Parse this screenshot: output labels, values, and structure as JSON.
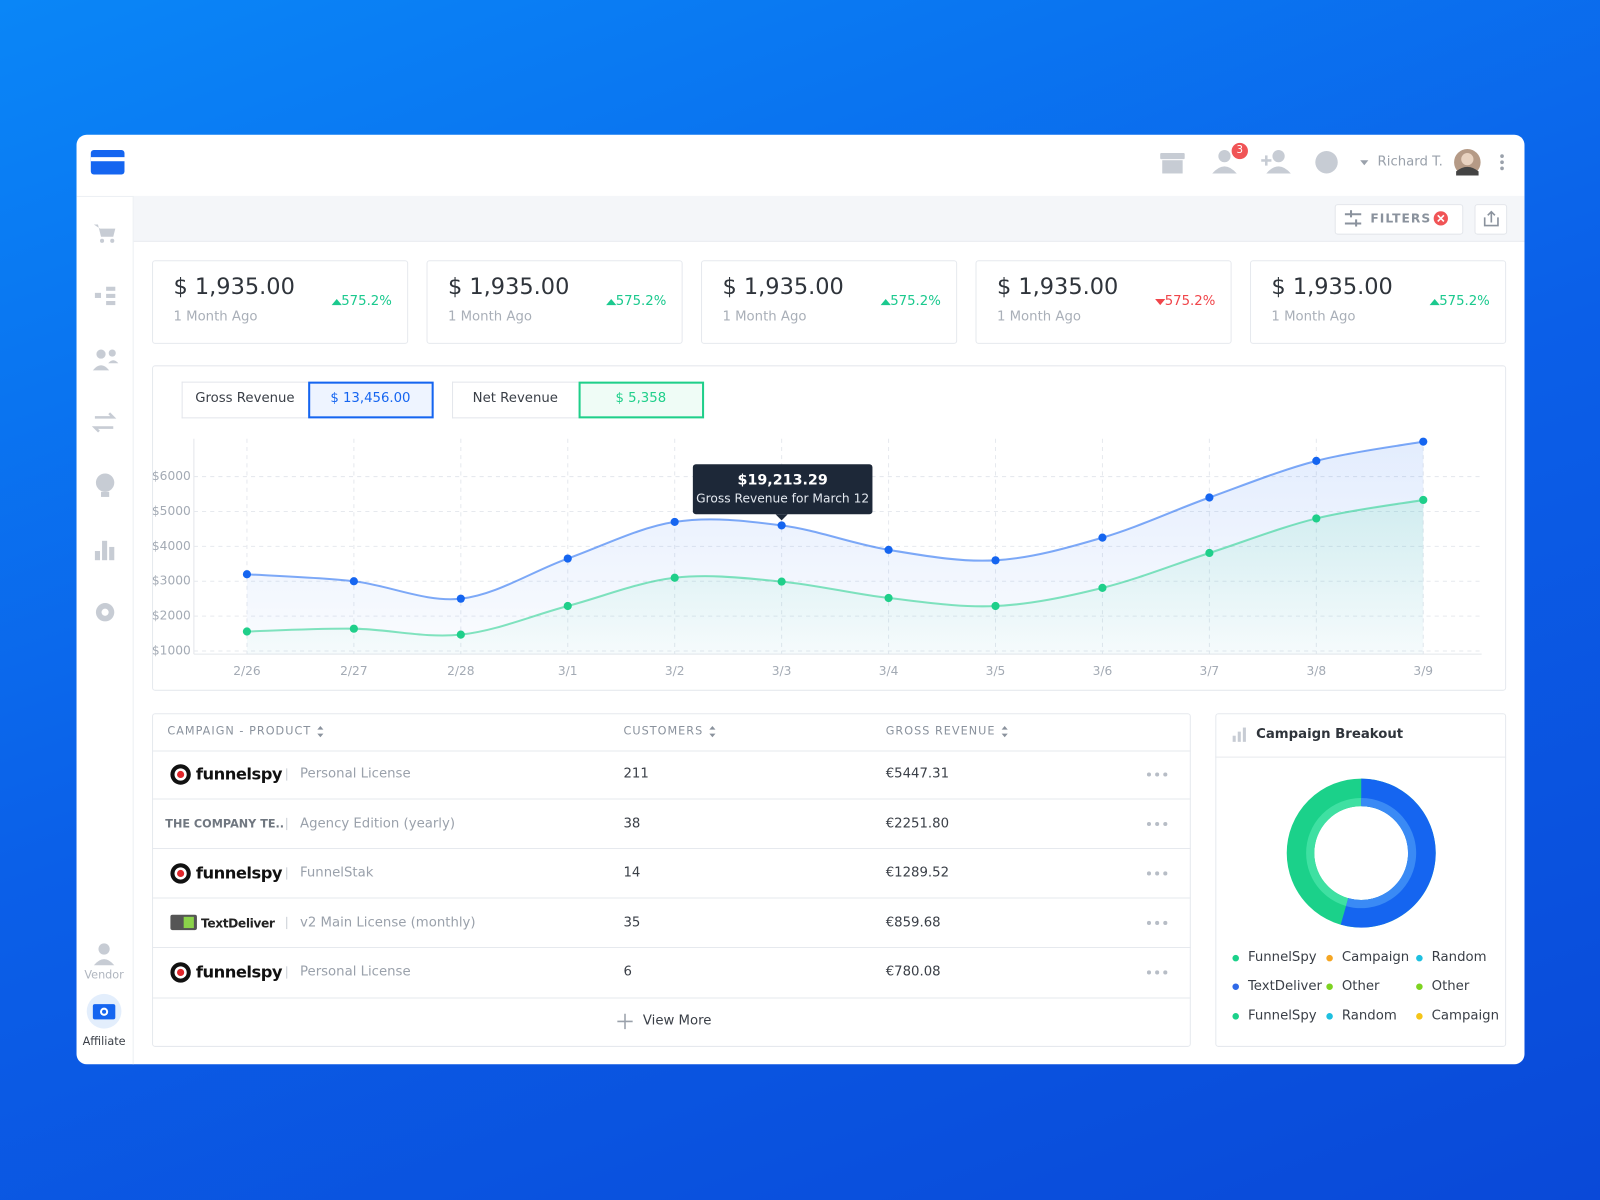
{
  "header": {
    "user": "Richard T.",
    "notifications": "3"
  },
  "toolbar": {
    "filters": "FILTERS"
  },
  "sidebar": {
    "items": [
      "Vendor",
      "Affiliate"
    ]
  },
  "stats": [
    {
      "amount": "$ 1,935.00",
      "period": "1 Month Ago",
      "change": "575.2%",
      "trend": "up"
    },
    {
      "amount": "$ 1,935.00",
      "period": "1 Month Ago",
      "change": "575.2%",
      "trend": "up"
    },
    {
      "amount": "$ 1,935.00",
      "period": "1 Month Ago",
      "change": "575.2%",
      "trend": "up"
    },
    {
      "amount": "$ 1,935.00",
      "period": "1 Month Ago",
      "change": "575.2%",
      "trend": "down"
    },
    {
      "amount": "$ 1,935.00",
      "period": "1 Month Ago",
      "change": "575.2%",
      "trend": "up"
    }
  ],
  "chart_data": {
    "type": "line",
    "categories": [
      "2/26",
      "2/27",
      "2/28",
      "3/1",
      "3/2",
      "3/3",
      "3/4",
      "3/5",
      "3/6",
      "3/7",
      "3/8",
      "3/9"
    ],
    "series": [
      {
        "name": "Gross Revenue",
        "total": "$ 13,456.00",
        "color": "#1565f0",
        "values": [
          3200,
          3000,
          2500,
          3650,
          4700,
          4600,
          3900,
          3600,
          4250,
          5400,
          6450,
          7000
        ]
      },
      {
        "name": "Net Revenue",
        "total": "$ 5,358",
        "color": "#1fcf8a",
        "values": [
          1560,
          1640,
          1470,
          2290,
          3100,
          2990,
          2520,
          2290,
          2810,
          3810,
          4800,
          5330
        ]
      }
    ],
    "ylim": [
      1000,
      7200
    ],
    "yticks": [
      {
        "value": 1000,
        "label": "$1000"
      },
      {
        "value": 2000,
        "label": "$2000"
      },
      {
        "value": 3000,
        "label": "$3000"
      },
      {
        "value": 4000,
        "label": "$4000"
      },
      {
        "value": 5000,
        "label": "$5000"
      },
      {
        "value": 6000,
        "label": "$6000"
      }
    ],
    "grid": true,
    "annotation": {
      "title": "$19,213.29",
      "text": "Gross Revenue for March 12"
    }
  },
  "table": {
    "columns": [
      "CAMPAIGN - PRODUCT",
      "CUSTOMERS",
      "GROSS REVENUE"
    ],
    "rows": [
      [
        "funnelspy",
        "Personal License",
        "211",
        "€5447.31"
      ],
      [
        "THE COMPANY TE..",
        "Agency Edition (yearly)",
        "38",
        "€2251.80"
      ],
      [
        "funnelspy",
        "FunnelStak",
        "14",
        "€1289.52"
      ],
      [
        "TextDeliver",
        "v2 Main License (monthly)",
        "35",
        "€859.68"
      ],
      [
        "funnelspy",
        "Personal License",
        "6",
        "€780.08"
      ]
    ],
    "more": "View More"
  },
  "breakdown": {
    "title": "Campaign Breakout",
    "legend": [
      {
        "name": "FunnelSpy",
        "color": "#1bd18a"
      },
      {
        "name": "Campaign",
        "color": "#f5a623"
      },
      {
        "name": "Random",
        "color": "#1ec0e0"
      },
      {
        "name": "TextDeliver",
        "color": "#2f6ae8"
      },
      {
        "name": "Other",
        "color": "#7ed321"
      },
      {
        "name": "Other",
        "color": "#7ed321"
      },
      {
        "name": "FunnelSpy",
        "color": "#1bd18a"
      },
      {
        "name": "Random",
        "color": "#1ec0e0"
      },
      {
        "name": "Campaign",
        "color": "#f5c518"
      }
    ]
  }
}
